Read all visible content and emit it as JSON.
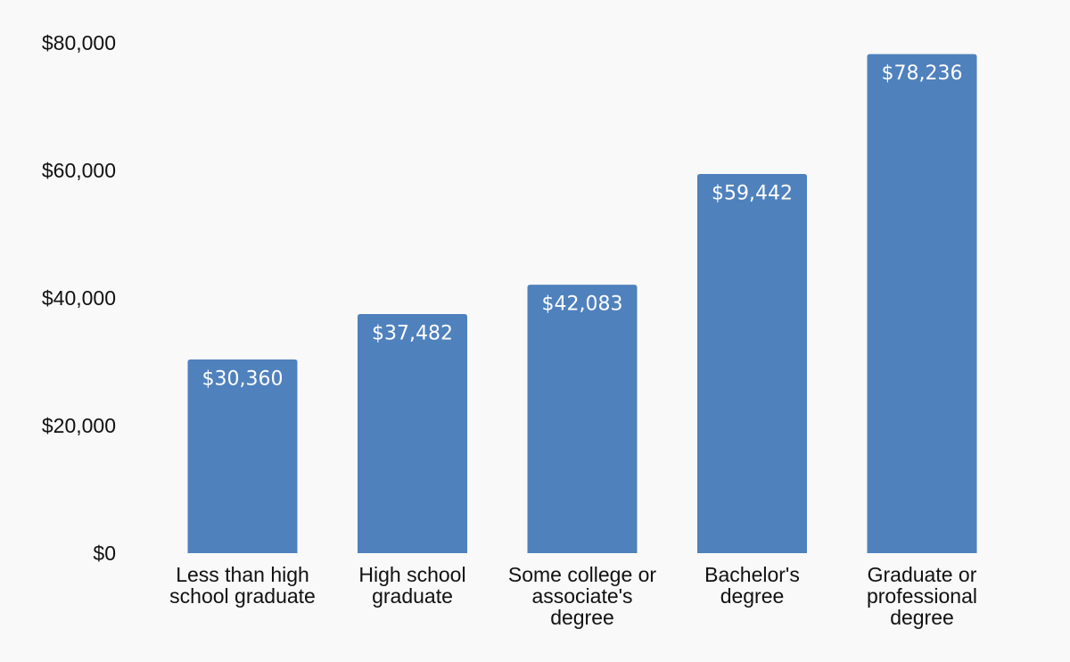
{
  "chart_data": {
    "type": "bar",
    "categories": [
      [
        "Less than high",
        "school graduate"
      ],
      [
        "High school",
        "graduate"
      ],
      [
        "Some college or",
        "associate's",
        "degree"
      ],
      [
        "Bachelor's",
        "degree"
      ],
      [
        "Graduate or",
        "professional",
        "degree"
      ]
    ],
    "values": [
      30360,
      37482,
      42083,
      59442,
      78236
    ],
    "data_labels": [
      "$30,360",
      "$37,482",
      "$42,083",
      "$59,442",
      "$78,236"
    ],
    "y_ticks": [
      0,
      20000,
      40000,
      60000,
      80000
    ],
    "y_tick_labels": [
      "$0",
      "$20,000",
      "$40,000",
      "$60,000",
      "$80,000"
    ],
    "ylim": [
      0,
      80000
    ],
    "title": "",
    "xlabel": "",
    "ylabel": "",
    "grid": false,
    "legend": "none",
    "bar_color": "#4f81bd",
    "label_color": "#ffffff",
    "background": "#f9f9f9"
  }
}
